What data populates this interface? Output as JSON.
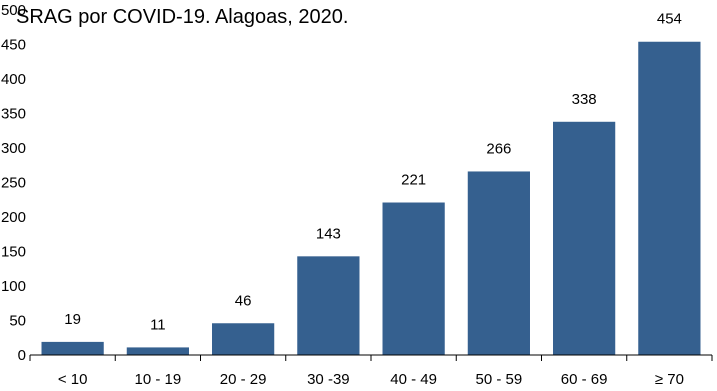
{
  "chart_data": {
    "type": "bar",
    "title": "SRAG por COVID-19. Alagoas, 2020.",
    "xlabel": "",
    "ylabel": "",
    "categories": [
      "< 10",
      "10 - 19",
      "20 - 29",
      "30 -39",
      "40 - 49",
      "50 - 59",
      "60 - 69",
      "≥ 70"
    ],
    "values": [
      19,
      11,
      46,
      143,
      221,
      266,
      338,
      454
    ],
    "ylim": [
      0,
      500
    ],
    "yticks": [
      "0",
      "50",
      "100",
      "150",
      "200",
      "250",
      "300",
      "350",
      "400",
      "450",
      "500"
    ],
    "grid": false,
    "legend": "none",
    "bar_color": "#35608f",
    "data_labels": true
  }
}
